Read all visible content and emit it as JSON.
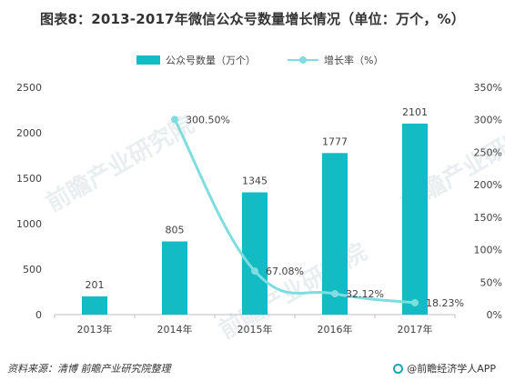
{
  "title": "图表8：2013-2017年微信公众号数量增长情况（单位：万个，%）",
  "legend": {
    "bar_label": "公众号数量（万个）",
    "line_label": "增长率（%）"
  },
  "watermark": "前瞻产业研究院",
  "footer": {
    "source": "资料来源：清博   前瞻产业研究院整理",
    "brand": "@前瞻经济学人APP"
  },
  "colors": {
    "bar": "#13bcc4",
    "line": "#7fdde0",
    "axis": "#bfbfbf",
    "text": "#404040"
  },
  "chart_data": {
    "type": "bar",
    "title": "图表8：2013-2017年微信公众号数量增长情况（单位：万个，%）",
    "categories": [
      "2013年",
      "2014年",
      "2015年",
      "2016年",
      "2017年"
    ],
    "series": [
      {
        "name": "公众号数量（万个）",
        "type": "bar",
        "axis": "left",
        "values": [
          201,
          805,
          1345,
          1777,
          2101
        ],
        "value_labels": [
          "201",
          "805",
          "1345",
          "1777",
          "2101"
        ]
      },
      {
        "name": "增长率（%）",
        "type": "line",
        "axis": "right",
        "values": [
          null,
          300.5,
          67.08,
          32.12,
          18.23
        ],
        "value_labels": [
          "",
          "300.50%",
          "67.08%",
          "32.12%",
          "18.23%"
        ]
      }
    ],
    "y_left": {
      "ylim": [
        0,
        2500
      ],
      "ticks": [
        0,
        500,
        1000,
        1500,
        2000,
        2500
      ],
      "tick_labels": [
        "0",
        "500",
        "1000",
        "1500",
        "2000",
        "2500"
      ]
    },
    "y_right": {
      "ylim": [
        0,
        350
      ],
      "ticks": [
        0,
        50,
        100,
        150,
        200,
        250,
        300,
        350
      ],
      "tick_labels": [
        "0%",
        "50%",
        "100%",
        "150%",
        "200%",
        "250%",
        "300%",
        "350%"
      ]
    },
    "grid": false,
    "legend_position": "top-center"
  }
}
